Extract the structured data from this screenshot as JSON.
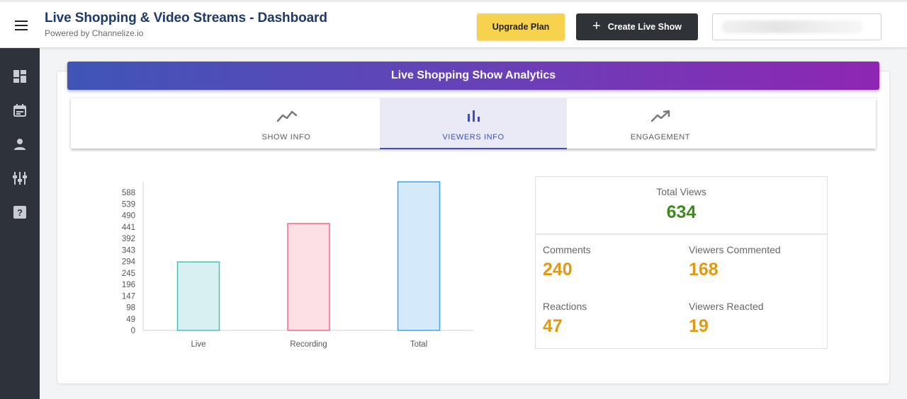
{
  "header": {
    "title": "Live Shopping & Video Streams - Dashboard",
    "subtitle": "Powered by Channelize.io",
    "upgrade_label": "Upgrade Plan",
    "create_label": "Create Live Show",
    "create_icon": "plus-icon",
    "menu_icon": "hamburger-menu-icon"
  },
  "sidebar": {
    "items": [
      {
        "icon": "dashboard-icon"
      },
      {
        "icon": "calendar-icon"
      },
      {
        "icon": "person-icon"
      },
      {
        "icon": "settings-sliders-icon"
      },
      {
        "icon": "help-icon"
      }
    ]
  },
  "analytics": {
    "title": "Live Shopping Show Analytics",
    "tabs": [
      {
        "label": "SHOW INFO",
        "icon": "line-chart-icon",
        "active": false
      },
      {
        "label": "VIEWERS INFO",
        "icon": "bar-chart-icon",
        "active": true
      },
      {
        "label": "ENGAGEMENT",
        "icon": "trending-up-icon",
        "active": false
      }
    ]
  },
  "chart_data": {
    "type": "bar",
    "categories": [
      "Live",
      "Recording",
      "Total"
    ],
    "values": [
      292,
      456,
      634
    ],
    "yticks": [
      "0",
      "49",
      "98",
      "147",
      "196",
      "245",
      "294",
      "343",
      "392",
      "441",
      "490",
      "539",
      "588"
    ],
    "ylim": [
      0,
      634
    ],
    "colors": {
      "fills": [
        "#d8f1f0",
        "#fde0e6",
        "#d4e9fa"
      ],
      "strokes": [
        "#4bbfbf",
        "#ef6b8a",
        "#41a4ec"
      ]
    },
    "grid": false,
    "legend": "none"
  },
  "stats": {
    "total_views_label": "Total Views",
    "total_views": "634",
    "comments_label": "Comments",
    "comments": "240",
    "viewers_commented_label": "Viewers Commented",
    "viewers_commented": "168",
    "reactions_label": "Reactions",
    "reactions": "47",
    "viewers_reacted_label": "Viewers Reacted",
    "viewers_reacted": "19",
    "colors": {
      "total": "#3f8a1f",
      "metric": "#e09a12"
    }
  }
}
